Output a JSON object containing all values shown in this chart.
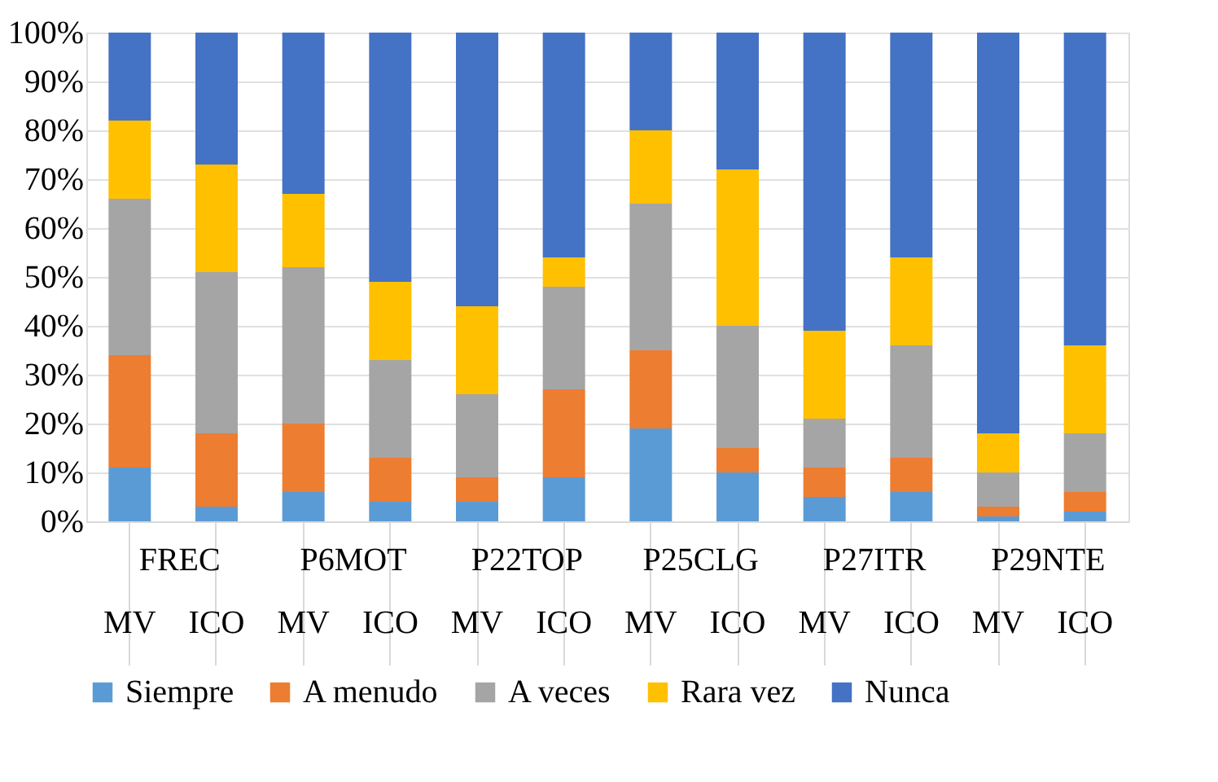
{
  "chart_data": {
    "type": "bar",
    "stacked": true,
    "categories": [
      "MV",
      "ICO",
      "MV",
      "ICO",
      "MV",
      "ICO",
      "MV",
      "ICO",
      "MV",
      "ICO",
      "MV",
      "ICO"
    ],
    "annotations": [
      "FREC",
      "P6MOT",
      "P22TOP",
      "P25CLG",
      "P27ITR",
      "P29NTE"
    ],
    "series": [
      {
        "name": "Siempre",
        "color": "#5b9bd5",
        "values": [
          11,
          3,
          6,
          4,
          4,
          9,
          19,
          10,
          5,
          6,
          1,
          2
        ]
      },
      {
        "name": "A menudo",
        "color": "#ed7d31",
        "values": [
          23,
          15,
          14,
          9,
          5,
          18,
          16,
          5,
          6,
          7,
          2,
          4
        ]
      },
      {
        "name": "A veces",
        "color": "#a5a5a5",
        "values": [
          32,
          33,
          32,
          20,
          17,
          21,
          30,
          25,
          10,
          23,
          7,
          12
        ]
      },
      {
        "name": "Rara vez",
        "color": "#ffc000",
        "values": [
          16,
          22,
          15,
          16,
          18,
          6,
          15,
          32,
          18,
          18,
          8,
          18
        ]
      },
      {
        "name": "Nunca",
        "color": "#4472c4",
        "values": [
          18,
          27,
          33,
          51,
          56,
          46,
          20,
          28,
          61,
          46,
          82,
          64
        ]
      }
    ],
    "ylim": [
      0,
      100
    ],
    "yticks": [
      {
        "value": 0,
        "label": "0%"
      },
      {
        "value": 10,
        "label": "10%"
      },
      {
        "value": 20,
        "label": "20%"
      },
      {
        "value": 30,
        "label": "30%"
      },
      {
        "value": 40,
        "label": "40%"
      },
      {
        "value": 50,
        "label": "50%"
      },
      {
        "value": 60,
        "label": "60%"
      },
      {
        "value": 70,
        "label": "70%"
      },
      {
        "value": 80,
        "label": "80%"
      },
      {
        "value": 90,
        "label": "90%"
      },
      {
        "value": 100,
        "label": "100%"
      }
    ],
    "grid": "y",
    "legend": "bottom"
  }
}
